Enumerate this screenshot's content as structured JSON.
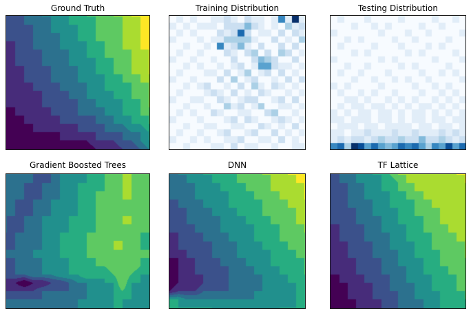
{
  "figure": {
    "background": "#ffffff",
    "axes_border_color": "#1a1a1a",
    "title_color": "#000000"
  },
  "palettes": {
    "viridis9": [
      "#440154",
      "#472c7a",
      "#3b518b",
      "#2c718e",
      "#21908d",
      "#27ad81",
      "#5ec962",
      "#aadc30",
      "#fde725"
    ],
    "blues": [
      "#f7fbff",
      "#deebf7",
      "#c6dbef",
      "#9ecae1",
      "#6baed6",
      "#4292c6",
      "#2171b5",
      "#08519c",
      "#08306b"
    ]
  },
  "chart_data": [
    {
      "title": "Ground Truth",
      "type": "contour",
      "colormap": "viridis",
      "n_levels": 9,
      "x_range": [
        0,
        1
      ],
      "y_range": [
        0,
        1
      ],
      "z_rows_top_to_bottom": [
        "22334445566677888",
        "22333445556667788",
        "22233444556677788",
        "22233344556667788",
        "12233344455667788",
        "12223334455666778",
        "12223334445566778",
        "11222333445566778",
        "11222333444556677",
        "11122233344555667",
        "11112223344455667",
        "11112222334445567",
        "01111222333445566",
        "00111122223344556",
        "00011111222333445",
        "00000011112223345",
        "00000000001112234"
      ]
    },
    {
      "title": "Training Distribution",
      "type": "heatmap",
      "colormap": "Blues",
      "n_bins": 20,
      "z_rows_top_to_bottom": [
        "01010011210211016191",
        "10101110222421010312",
        "01010002127201102021",
        "10001011333310020103",
        "00100106124102002020",
        "01001000210230203201",
        "10010010020024320020",
        "00101001012015521101",
        "01000110201301202010",
        "10010002030120010202",
        "00101200102031021010",
        "01000121020102100101",
        "10011002101220012020",
        "00100100312013001101",
        "01010021001100230010",
        "10001000120210012101",
        "00100110011002101020",
        "01001001200120020101",
        "10010100112001102010",
        "00100011020110010011"
      ]
    },
    {
      "title": "Testing Distribution",
      "type": "heatmap",
      "colormap": "Blues",
      "n_bins": 20,
      "z_rows_top_to_bottom": [
        "01000100001000010010",
        "00010010100001001000",
        "10000001000100100001",
        "00101000010010000100",
        "01000010001000101000",
        "00010100000101000010",
        "10000001010000010001",
        "00100100001010000100",
        "01001000100001001010",
        "00010010010100100001",
        "10100001000010010100",
        "01001010010001001010",
        "00110100101010010101",
        "01011011010101101010",
        "10101101101011010101",
        "11011101101011011011",
        "01110110111101101101",
        "11011211121121112121",
        "12122123223224223212",
        "67398575457675365857"
      ]
    },
    {
      "title": "Gradient Boosted Trees",
      "type": "contour",
      "colormap": "viridis",
      "n_levels": 9,
      "x_range": [
        0,
        1
      ],
      "y_range": [
        0,
        1
      ],
      "z_rows_top_to_bottom": [
        "33332344455667766",
        "33333344555667766",
        "33323344556667766",
        "33333445556667766",
        "33233444556667666",
        "33334455566667766",
        "32334445556667766",
        "33344555666667666",
        "23334455566677665",
        "33344455666677666",
        "33444555566667666",
        "23334445556677765",
        "33344455566567655",
        "11011223444557554",
        "22223333344456544",
        "33333333444455544",
        "33333333444455444"
      ]
    },
    {
      "title": "DNN",
      "type": "contour",
      "colormap": "viridis",
      "n_levels": 9,
      "x_range": [
        0,
        1
      ],
      "y_range": [
        0,
        1
      ],
      "z_rows_top_to_bottom": [
        "34445555666777888",
        "33444555666677788",
        "33344455566677778",
        "33344445556667778",
        "23334445555666777",
        "22333444555666677",
        "22333344455566677",
        "22233344445556667",
        "12223334445556666",
        "12222333444555666",
        "11222333444455566",
        "01122233344455556",
        "01122223334445556",
        "01112223333444555",
        "12223333334444455",
        "55444444444444455",
        "65555544444445555"
      ]
    },
    {
      "title": "TF Lattice",
      "type": "contour",
      "colormap": "viridis",
      "n_levels": 9,
      "x_range": [
        0,
        1
      ],
      "y_range": [
        0,
        1
      ],
      "z_rows_top_to_bottom": [
        "23344556777777788",
        "23344455677777778",
        "22334455667777777",
        "22334445566777777",
        "22333445556677777",
        "22233444556667777",
        "22233344555667777",
        "12223344455666777",
        "12223334455566677",
        "11222334445566667",
        "11222333445556667",
        "11122233444556666",
        "11122233344555666",
        "01112223344455566",
        "00111223334455566",
        "00111222334445556",
        "00011122333445555"
      ]
    }
  ]
}
